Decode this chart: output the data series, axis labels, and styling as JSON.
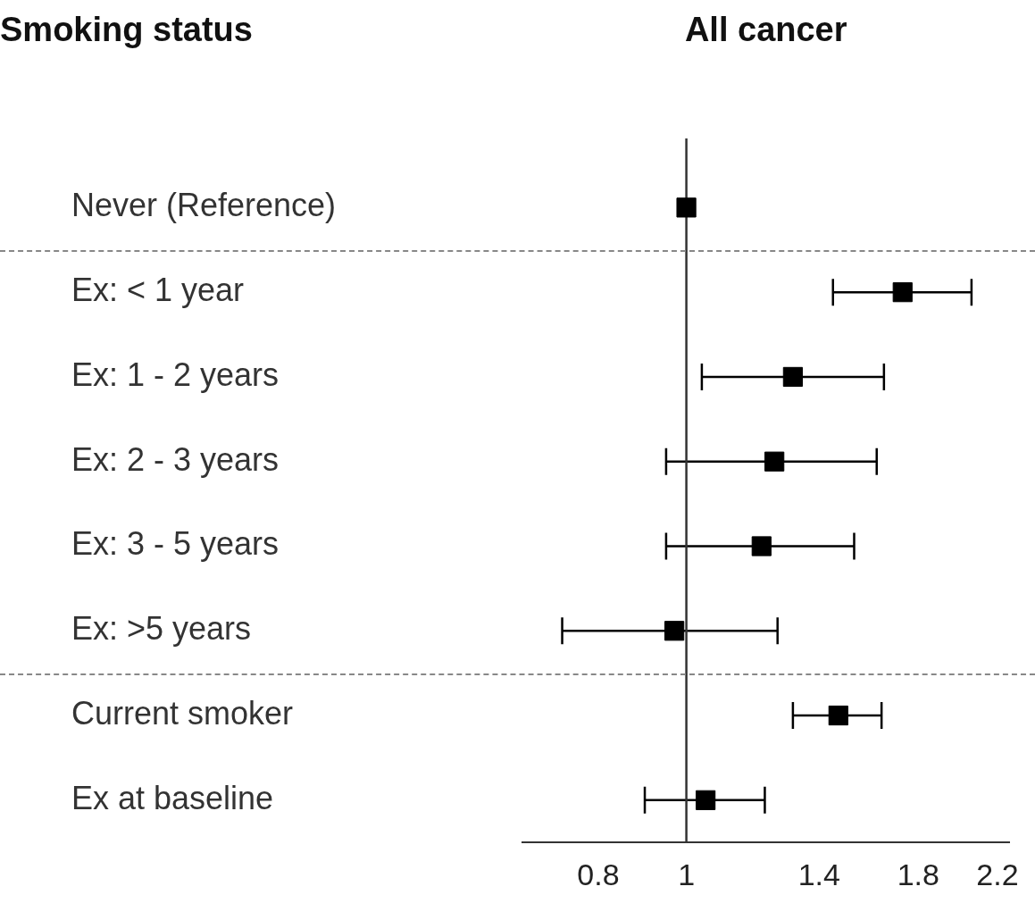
{
  "chart_data": {
    "type": "scatter",
    "orientation": "horizontal",
    "title": "All cancer",
    "ylabel": "Smoking status",
    "categories": [
      "Never (Reference)",
      "Ex: < 1 year",
      "Ex: 1 - 2 years",
      "Ex: 2 - 3 years",
      "Ex: 3 - 5 years",
      "Ex: >5 years",
      "Current smoker",
      "Ex at baseline"
    ],
    "values": [
      1,
      1.73,
      1.31,
      1.25,
      1.21,
      0.97,
      1.47,
      1.05
    ],
    "errors": [
      null,
      [
        1.45,
        2.06
      ],
      [
        1.04,
        1.65
      ],
      [
        0.95,
        1.62
      ],
      [
        0.95,
        1.53
      ],
      [
        0.73,
        1.26
      ],
      [
        1.31,
        1.64
      ],
      [
        0.9,
        1.22
      ]
    ],
    "color": "#000000",
    "marker": "square",
    "log": "x",
    "xlim": [
      0.66,
      2.27
    ],
    "xticks": [
      0.8,
      1,
      1.4,
      1.8,
      2.2
    ],
    "ref_lines": [
      {
        "axis": "x",
        "value": 1,
        "color": "#333333"
      }
    ],
    "grid": false,
    "legend": false
  }
}
